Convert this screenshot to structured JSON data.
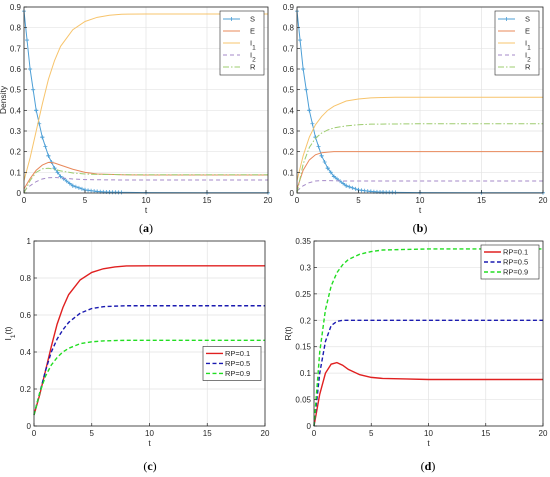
{
  "chart_data": [
    {
      "type": "line",
      "caption": "(a)",
      "xlabel": "t",
      "ylabel": "Density",
      "xlim": [
        0,
        20
      ],
      "ylim": [
        0,
        0.9
      ],
      "xticks": [
        0,
        5,
        10,
        15,
        20
      ],
      "yticks": [
        0,
        0.1,
        0.2,
        0.3,
        0.4,
        0.5,
        0.6,
        0.7,
        0.8,
        0.9
      ],
      "grid": true,
      "legend": "top-right",
      "series": [
        {
          "name": "S",
          "color": "#4d9fd6",
          "dash": "",
          "marker": "plus",
          "x": [
            0,
            0.5,
            1,
            1.5,
            2,
            2.5,
            3,
            4,
            5,
            6,
            7,
            8,
            10,
            15,
            20
          ],
          "y": [
            0.88,
            0.6,
            0.4,
            0.27,
            0.18,
            0.12,
            0.08,
            0.035,
            0.015,
            0.007,
            0.004,
            0.003,
            0.002,
            0.001,
            0.001
          ]
        },
        {
          "name": "E",
          "color": "#e8885a",
          "dash": "",
          "x": [
            0,
            0.5,
            1,
            1.5,
            2,
            2.5,
            3,
            4,
            5,
            6,
            8,
            10,
            15,
            20
          ],
          "y": [
            0.02,
            0.07,
            0.11,
            0.135,
            0.148,
            0.145,
            0.135,
            0.115,
            0.1,
            0.092,
            0.088,
            0.087,
            0.087,
            0.087
          ]
        },
        {
          "name": "I_1",
          "color": "#f7c46c",
          "dash": "",
          "x": [
            0,
            0.5,
            1,
            1.5,
            2,
            2.5,
            3,
            4,
            5,
            6,
            7,
            8,
            10,
            15,
            20
          ],
          "y": [
            0.06,
            0.17,
            0.3,
            0.43,
            0.55,
            0.64,
            0.71,
            0.79,
            0.83,
            0.85,
            0.86,
            0.865,
            0.866,
            0.866,
            0.866
          ]
        },
        {
          "name": "I_2",
          "color": "#a58ac8",
          "dash": "4,3",
          "x": [
            0,
            0.5,
            1,
            1.5,
            2,
            2.5,
            3,
            4,
            5,
            6,
            8,
            10,
            15,
            20
          ],
          "y": [
            0.01,
            0.035,
            0.055,
            0.068,
            0.074,
            0.075,
            0.073,
            0.068,
            0.065,
            0.064,
            0.063,
            0.063,
            0.063,
            0.063
          ]
        },
        {
          "name": "R",
          "color": "#9dcc6f",
          "dash": "6,2,1.5,2",
          "x": [
            0,
            0.5,
            1,
            1.5,
            2,
            2.5,
            3,
            4,
            5,
            6,
            8,
            10,
            15,
            20
          ],
          "y": [
            0,
            0.06,
            0.1,
            0.117,
            0.12,
            0.115,
            0.107,
            0.097,
            0.092,
            0.09,
            0.089,
            0.088,
            0.088,
            0.088
          ]
        }
      ]
    },
    {
      "type": "line",
      "caption": "(b)",
      "xlabel": "t",
      "ylabel": "",
      "xlim": [
        0,
        20
      ],
      "ylim": [
        0,
        0.9
      ],
      "xticks": [
        0,
        5,
        10,
        15,
        20
      ],
      "yticks": [
        0,
        0.1,
        0.2,
        0.3,
        0.4,
        0.5,
        0.6,
        0.7,
        0.8,
        0.9
      ],
      "grid": true,
      "legend": "top-right",
      "series": [
        {
          "name": "S",
          "color": "#4d9fd6",
          "dash": "",
          "marker": "plus",
          "x": [
            0,
            0.5,
            1,
            1.5,
            2,
            2.5,
            3,
            4,
            5,
            6,
            7,
            8,
            10,
            15,
            20
          ],
          "y": [
            0.88,
            0.6,
            0.4,
            0.27,
            0.18,
            0.12,
            0.08,
            0.035,
            0.015,
            0.007,
            0.004,
            0.003,
            0.002,
            0.001,
            0.001
          ]
        },
        {
          "name": "E",
          "color": "#e8885a",
          "dash": "",
          "x": [
            0,
            0.5,
            1,
            1.5,
            2,
            2.5,
            3,
            4,
            5,
            6,
            8,
            10,
            15,
            20
          ],
          "y": [
            0.02,
            0.11,
            0.16,
            0.185,
            0.195,
            0.198,
            0.2,
            0.2,
            0.2,
            0.2,
            0.2,
            0.2,
            0.2,
            0.2
          ]
        },
        {
          "name": "I_1",
          "color": "#f7c46c",
          "dash": "",
          "x": [
            0,
            0.5,
            1,
            1.5,
            2,
            2.5,
            3,
            4,
            5,
            6,
            7,
            8,
            10,
            15,
            20
          ],
          "y": [
            0.06,
            0.18,
            0.27,
            0.33,
            0.37,
            0.4,
            0.42,
            0.445,
            0.455,
            0.46,
            0.462,
            0.463,
            0.463,
            0.463,
            0.463
          ]
        },
        {
          "name": "I_2",
          "color": "#a58ac8",
          "dash": "4,3",
          "x": [
            0,
            0.5,
            1,
            1.5,
            2,
            2.5,
            3,
            4,
            5,
            6,
            8,
            10,
            15,
            20
          ],
          "y": [
            0.01,
            0.035,
            0.05,
            0.058,
            0.06,
            0.06,
            0.059,
            0.058,
            0.058,
            0.058,
            0.058,
            0.058,
            0.058,
            0.058
          ]
        },
        {
          "name": "R",
          "color": "#9dcc6f",
          "dash": "6,2,1.5,2",
          "x": [
            0,
            0.5,
            1,
            1.5,
            2,
            2.5,
            3,
            4,
            5,
            6,
            8,
            10,
            15,
            20
          ],
          "y": [
            0,
            0.14,
            0.22,
            0.265,
            0.29,
            0.305,
            0.315,
            0.325,
            0.33,
            0.333,
            0.334,
            0.335,
            0.335,
            0.335
          ]
        }
      ]
    },
    {
      "type": "line",
      "caption": "(c)",
      "xlabel": "t",
      "ylabel": "I_1(t)",
      "xlim": [
        0,
        20
      ],
      "ylim": [
        0,
        1
      ],
      "xticks": [
        0,
        5,
        10,
        15,
        20
      ],
      "yticks": [
        0,
        0.2,
        0.4,
        0.6,
        0.8,
        1
      ],
      "grid": true,
      "legend": "center-right",
      "series": [
        {
          "name": "RP=0.1",
          "color": "#e02020",
          "dash": "",
          "x": [
            0,
            0.5,
            1,
            1.5,
            2,
            2.5,
            3,
            4,
            5,
            6,
            7,
            8,
            10,
            15,
            20
          ],
          "y": [
            0.06,
            0.17,
            0.3,
            0.43,
            0.55,
            0.64,
            0.71,
            0.79,
            0.83,
            0.85,
            0.86,
            0.865,
            0.866,
            0.866,
            0.866
          ]
        },
        {
          "name": "RP=0.5",
          "color": "#1a1ab0",
          "dash": "4,2.5",
          "x": [
            0,
            0.5,
            1,
            1.5,
            2,
            2.5,
            3,
            4,
            5,
            6,
            7,
            8,
            10,
            15,
            20
          ],
          "y": [
            0.06,
            0.18,
            0.3,
            0.4,
            0.47,
            0.52,
            0.56,
            0.61,
            0.635,
            0.645,
            0.648,
            0.65,
            0.65,
            0.65,
            0.65
          ]
        },
        {
          "name": "RP=0.9",
          "color": "#22dd22",
          "dash": "4,2.5",
          "x": [
            0,
            0.5,
            1,
            1.5,
            2,
            2.5,
            3,
            4,
            5,
            6,
            7,
            8,
            10,
            15,
            20
          ],
          "y": [
            0.06,
            0.18,
            0.27,
            0.33,
            0.37,
            0.4,
            0.42,
            0.445,
            0.455,
            0.46,
            0.462,
            0.463,
            0.463,
            0.463,
            0.463
          ]
        }
      ]
    },
    {
      "type": "line",
      "caption": "(d)",
      "xlabel": "t",
      "ylabel": "R(t)",
      "xlim": [
        0,
        20
      ],
      "ylim": [
        0,
        0.35
      ],
      "xticks": [
        0,
        5,
        10,
        15,
        20
      ],
      "yticks": [
        0,
        0.05,
        0.1,
        0.15,
        0.2,
        0.25,
        0.3,
        0.35
      ],
      "grid": true,
      "legend": "top-right",
      "series": [
        {
          "name": "RP=0.1",
          "color": "#e02020",
          "dash": "",
          "x": [
            0,
            0.5,
            1,
            1.5,
            2,
            2.5,
            3,
            4,
            5,
            6,
            8,
            10,
            15,
            20
          ],
          "y": [
            0,
            0.06,
            0.1,
            0.117,
            0.12,
            0.115,
            0.107,
            0.097,
            0.092,
            0.09,
            0.089,
            0.088,
            0.088,
            0.088
          ]
        },
        {
          "name": "RP=0.5",
          "color": "#1a1ab0",
          "dash": "4,2.5",
          "x": [
            0,
            0.5,
            1,
            1.5,
            2,
            2.5,
            3,
            4,
            5,
            6,
            8,
            10,
            15,
            20
          ],
          "y": [
            0,
            0.1,
            0.16,
            0.19,
            0.198,
            0.2,
            0.2,
            0.2,
            0.2,
            0.2,
            0.2,
            0.2,
            0.2,
            0.2
          ]
        },
        {
          "name": "RP=0.9",
          "color": "#22dd22",
          "dash": "4,2.5",
          "x": [
            0,
            0.5,
            1,
            1.5,
            2,
            2.5,
            3,
            4,
            5,
            6,
            8,
            10,
            15,
            20
          ],
          "y": [
            0,
            0.14,
            0.22,
            0.265,
            0.29,
            0.305,
            0.315,
            0.325,
            0.33,
            0.333,
            0.334,
            0.335,
            0.335,
            0.335
          ]
        }
      ]
    }
  ]
}
